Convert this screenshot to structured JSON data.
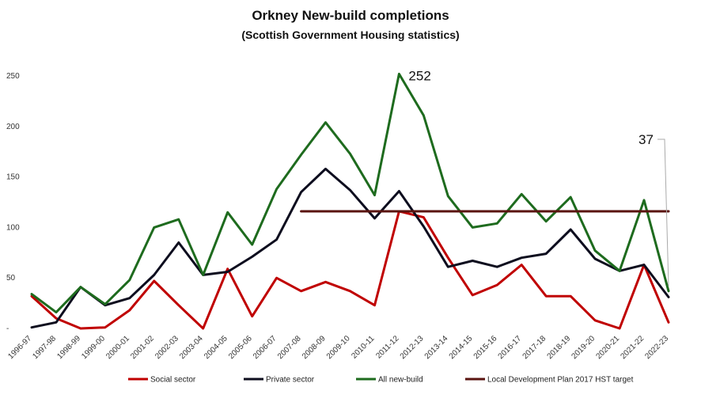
{
  "chart_data": {
    "type": "line",
    "title": "Orkney New-build completions",
    "subtitle": "(Scottish Government Housing statistics)",
    "xlabel": "",
    "ylabel": "",
    "ylim": [
      0,
      250
    ],
    "yticks": [
      {
        "value": 0,
        "label": "-"
      },
      {
        "value": 50,
        "label": "50"
      },
      {
        "value": 100,
        "label": "100"
      },
      {
        "value": 150,
        "label": "150"
      },
      {
        "value": 200,
        "label": "200"
      },
      {
        "value": 250,
        "label": "250"
      }
    ],
    "grid": false,
    "legend": "bottom",
    "categories": [
      "1996-97",
      "1997-98",
      "1998-99",
      "1999-00",
      "2000-01",
      "2001-02",
      "2002-03",
      "2003-04",
      "2004-05",
      "2005-06",
      "2006-07",
      "2007-08",
      "2008-09",
      "2009-10",
      "2010-11",
      "2011-12",
      "2012-13",
      "2013-14",
      "2014-15",
      "2015-16",
      "2016-17",
      "2017-18",
      "2018-19",
      "2019-20",
      "2020-21",
      "2021-22",
      "2022-23"
    ],
    "series": [
      {
        "name": "Social sector",
        "color": "#c00000",
        "values": [
          32,
          10,
          0,
          1,
          18,
          47,
          23,
          0,
          59,
          12,
          50,
          37,
          46,
          37,
          23,
          116,
          110,
          70,
          33,
          43,
          63,
          32,
          32,
          8,
          0,
          63,
          6
        ]
      },
      {
        "name": "Private sector",
        "color": "#0d0d1e",
        "values": [
          1,
          6,
          41,
          23,
          30,
          53,
          85,
          53,
          56,
          71,
          88,
          135,
          158,
          137,
          109,
          136,
          101,
          61,
          67,
          61,
          70,
          74,
          98,
          69,
          57,
          63,
          31
        ]
      },
      {
        "name": "All new-build",
        "color": "#1e6b1e",
        "values": [
          34,
          16,
          41,
          24,
          48,
          100,
          108,
          53,
          115,
          83,
          138,
          172,
          204,
          173,
          132,
          252,
          211,
          131,
          100,
          104,
          133,
          106,
          130,
          77,
          57,
          127,
          37
        ]
      },
      {
        "name": "Local Development Plan 2017 HST target",
        "color": "#5a1410",
        "target_value": 116,
        "start_category": "2007-08",
        "end_category": "2022-23"
      }
    ],
    "annotations": [
      {
        "text": "252",
        "category": "2011-12",
        "value": 252
      },
      {
        "text": "37",
        "category": "2022-23",
        "value": 37
      }
    ]
  }
}
